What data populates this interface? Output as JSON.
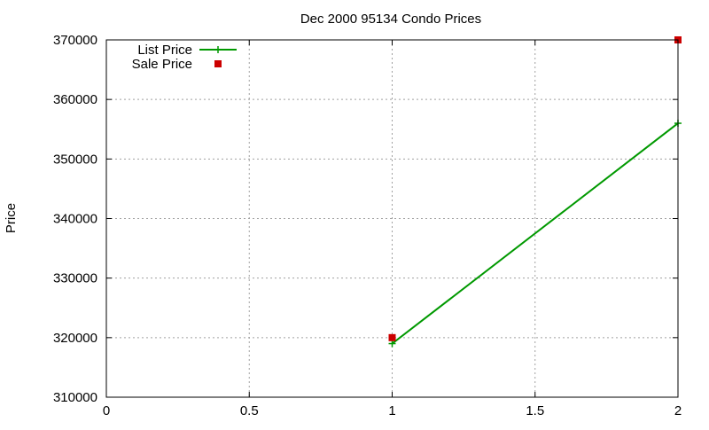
{
  "chart_data": {
    "type": "line",
    "title": "Dec 2000 95134 Condo Prices",
    "xlabel": "",
    "ylabel": "Price",
    "xlim": [
      0,
      2
    ],
    "ylim": [
      310000,
      370000
    ],
    "x_ticks": [
      {
        "value": 0,
        "label": "0"
      },
      {
        "value": 0.5,
        "label": "0.5"
      },
      {
        "value": 1,
        "label": "1"
      },
      {
        "value": 1.5,
        "label": "1.5"
      },
      {
        "value": 2,
        "label": "2"
      }
    ],
    "y_ticks": [
      {
        "value": 310000,
        "label": "310000"
      },
      {
        "value": 320000,
        "label": "320000"
      },
      {
        "value": 330000,
        "label": "330000"
      },
      {
        "value": 340000,
        "label": "340000"
      },
      {
        "value": 350000,
        "label": "350000"
      },
      {
        "value": 360000,
        "label": "360000"
      },
      {
        "value": 370000,
        "label": "370000"
      }
    ],
    "grid": true,
    "legend_position": "top-left",
    "series": [
      {
        "name": "List Price",
        "style": "line-with-plus-markers",
        "color": "#009900",
        "points": [
          {
            "x": 1,
            "y": 319000
          },
          {
            "x": 2,
            "y": 356000
          }
        ]
      },
      {
        "name": "Sale Price",
        "style": "square-markers",
        "color": "#cc0000",
        "points": [
          {
            "x": 1,
            "y": 320000
          },
          {
            "x": 2,
            "y": 370000
          }
        ]
      }
    ]
  }
}
